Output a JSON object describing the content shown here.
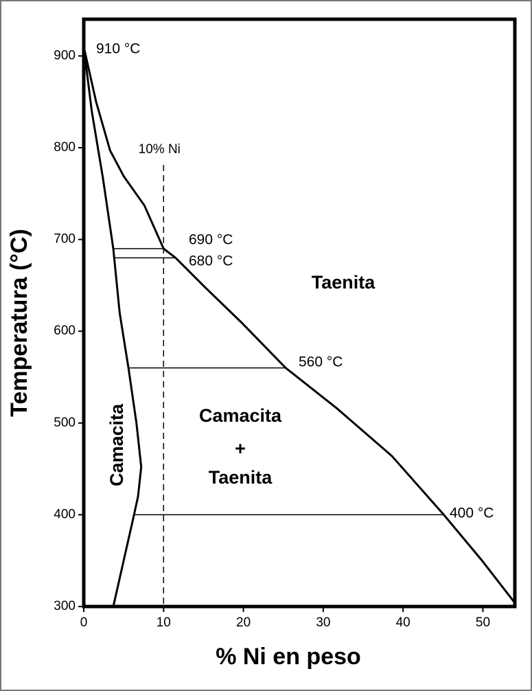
{
  "chart_data": {
    "type": "line",
    "xlabel": "% Ni en peso",
    "ylabel": "Temperatura (°C)",
    "xlim": [
      0,
      54
    ],
    "ylim": [
      300,
      940
    ],
    "xticks": [
      0,
      10,
      20,
      30,
      40,
      50
    ],
    "yticks": [
      300,
      400,
      500,
      600,
      700,
      800,
      900
    ],
    "series": [
      {
        "color": "#000000",
        "x": [
          0,
          1.55,
          3.3,
          5,
          7.6,
          10,
          11.5,
          15.3,
          19.7,
          25.3,
          31.7,
          38.6,
          45.1,
          49.8,
          54
        ],
        "values": [
          910,
          850,
          797,
          769,
          737,
          690,
          680,
          647,
          610,
          560,
          516,
          464,
          400,
          351,
          304
        ]
      },
      {
        "color": "#000000",
        "x": [
          0,
          1,
          2.4,
          3.7,
          4.5,
          5.6,
          6.6,
          7.2,
          6.8,
          6.3,
          5,
          3.7
        ],
        "values": [
          910,
          840,
          767,
          690,
          620,
          560,
          500,
          452,
          420,
          400,
          350,
          300
        ]
      },
      {
        "color": "#000000",
        "x": [
          3.7,
          10
        ],
        "values": [
          690,
          690
        ]
      },
      {
        "color": "#000000",
        "x": [
          3.7,
          11.5
        ],
        "values": [
          680,
          680
        ]
      },
      {
        "color": "#000000",
        "x": [
          5.6,
          25.3
        ],
        "values": [
          560,
          560
        ]
      },
      {
        "color": "#000000",
        "x": [
          6.3,
          45.1
        ],
        "values": [
          400,
          400
        ]
      }
    ],
    "reference_line": {
      "x": 10,
      "label": "10% Ni"
    },
    "annotations": [
      "910 °C",
      "690 °C",
      "680 °C",
      "560 °C",
      "400 °C",
      "Taenita",
      "Camacita",
      "+",
      "Taenita",
      "Camacita"
    ]
  }
}
